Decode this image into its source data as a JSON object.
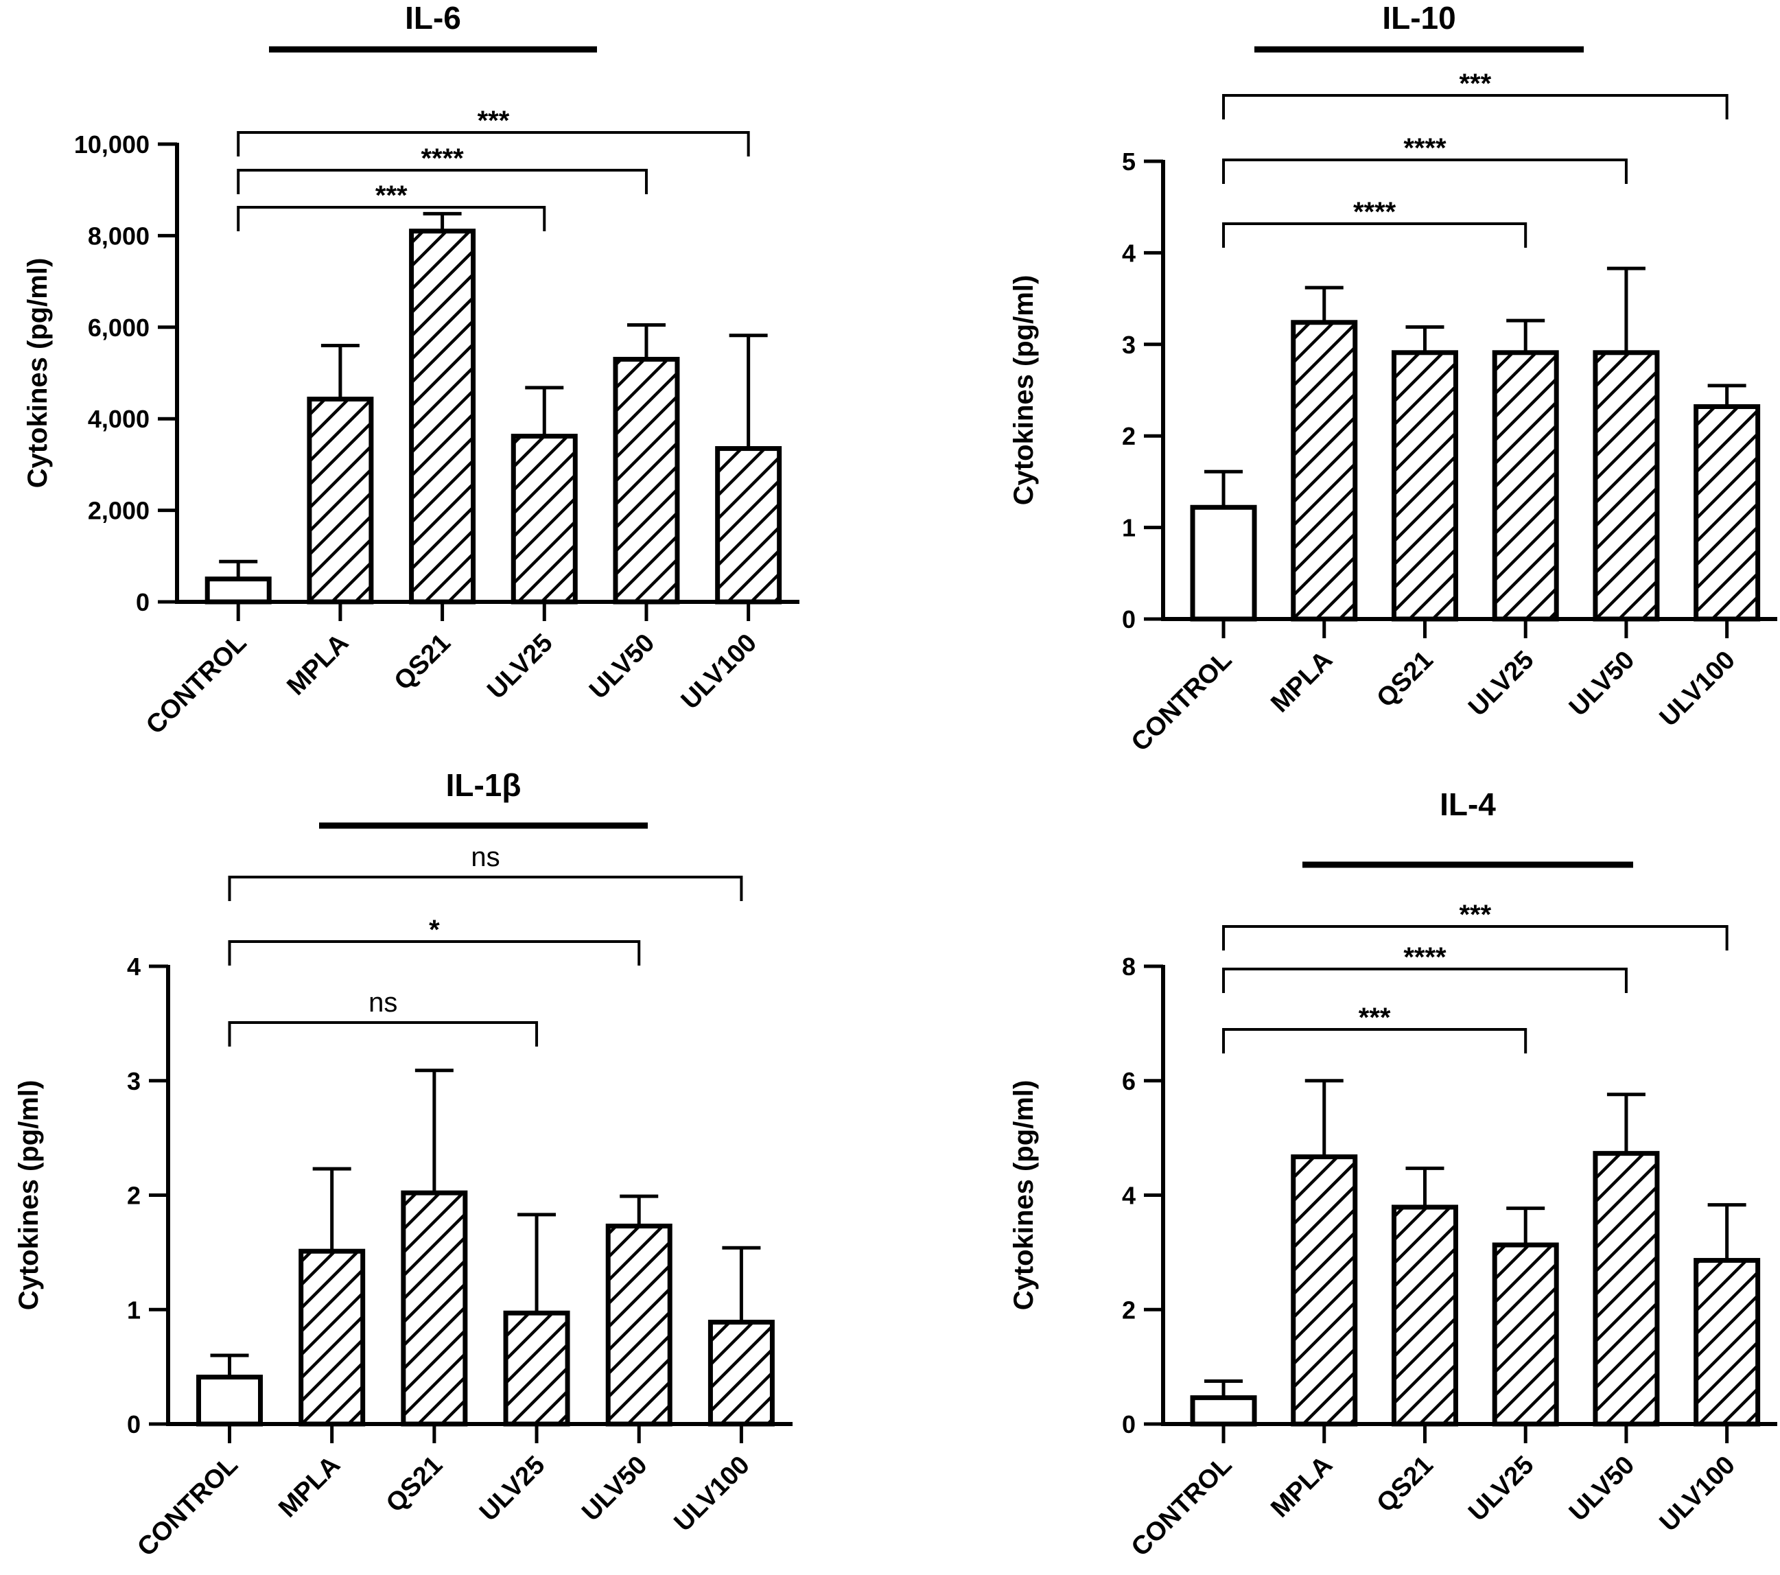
{
  "chart_data": [
    {
      "type": "bar",
      "title": "IL-6",
      "ylabel": "Cytokines (pg/ml)",
      "xlabel": "",
      "categories": [
        "CONTROL",
        "MPLA",
        "QS21",
        "ULV25",
        "ULV50",
        "ULV100"
      ],
      "values": [
        500,
        4430,
        8100,
        3620,
        5300,
        3350
      ],
      "errors": [
        380,
        1170,
        380,
        1060,
        750,
        2470
      ],
      "patterns": [
        "none",
        "hatch",
        "hatch",
        "hatch",
        "hatch",
        "hatch"
      ],
      "ylim": [
        0,
        10000
      ],
      "yticks": [
        0,
        2000,
        4000,
        6000,
        8000,
        10000
      ],
      "ytick_labels": [
        "0",
        "2,000",
        "4,000",
        "6,000",
        "8,000",
        "10,000"
      ],
      "comparisons": [
        {
          "from": "CONTROL",
          "to": "ULV25",
          "label": "***"
        },
        {
          "from": "CONTROL",
          "to": "ULV50",
          "label": "****"
        },
        {
          "from": "CONTROL",
          "to": "ULV100",
          "label": "***"
        }
      ]
    },
    {
      "type": "bar",
      "title": "IL-10",
      "ylabel": "Cytokines (pg/ml)",
      "xlabel": "",
      "categories": [
        "CONTROL",
        "MPLA",
        "QS21",
        "ULV25",
        "ULV50",
        "ULV100"
      ],
      "values": [
        1.22,
        3.24,
        2.91,
        2.91,
        2.91,
        2.32
      ],
      "errors": [
        0.39,
        0.38,
        0.28,
        0.35,
        0.92,
        0.23
      ],
      "patterns": [
        "none",
        "hatch",
        "hatch",
        "hatch",
        "hatch",
        "hatch"
      ],
      "ylim": [
        0,
        5
      ],
      "yticks": [
        0,
        1,
        2,
        3,
        4,
        5
      ],
      "ytick_labels": [
        "0",
        "1",
        "2",
        "3",
        "4",
        "5"
      ],
      "comparisons": [
        {
          "from": "CONTROL",
          "to": "ULV25",
          "label": "****"
        },
        {
          "from": "CONTROL",
          "to": "ULV50",
          "label": "****"
        },
        {
          "from": "CONTROL",
          "to": "ULV100",
          "label": "***"
        }
      ]
    },
    {
      "type": "bar",
      "title": "IL-1β",
      "ylabel": "Cytokines (pg/ml)",
      "xlabel": "",
      "categories": [
        "CONTROL",
        "MPLA",
        "QS21",
        "ULV25",
        "ULV50",
        "ULV100"
      ],
      "values": [
        0.41,
        1.51,
        2.02,
        0.97,
        1.73,
        0.89
      ],
      "errors": [
        0.19,
        0.72,
        1.07,
        0.86,
        0.26,
        0.65
      ],
      "patterns": [
        "none",
        "hatch",
        "hatch",
        "hatch",
        "hatch",
        "hatch"
      ],
      "ylim": [
        0,
        4
      ],
      "yticks": [
        0,
        1,
        2,
        3,
        4
      ],
      "ytick_labels": [
        "0",
        "1",
        "2",
        "3",
        "4"
      ],
      "comparisons": [
        {
          "from": "CONTROL",
          "to": "ULV25",
          "label": "ns"
        },
        {
          "from": "CONTROL",
          "to": "ULV50",
          "label": "*"
        },
        {
          "from": "CONTROL",
          "to": "ULV100",
          "label": "ns"
        }
      ]
    },
    {
      "type": "bar",
      "title": "IL-4",
      "ylabel": "Cytokines (pg/ml)",
      "xlabel": "",
      "categories": [
        "CONTROL",
        "MPLA",
        "QS21",
        "ULV25",
        "ULV50",
        "ULV100"
      ],
      "values": [
        0.46,
        4.67,
        3.79,
        3.13,
        4.73,
        2.86
      ],
      "errors": [
        0.29,
        1.33,
        0.68,
        0.64,
        1.03,
        0.97
      ],
      "patterns": [
        "none",
        "hatch",
        "hatch",
        "hatch",
        "hatch",
        "hatch"
      ],
      "ylim": [
        0,
        8
      ],
      "yticks": [
        0,
        2,
        4,
        6,
        8
      ],
      "ytick_labels": [
        "0",
        "2",
        "4",
        "6",
        "8"
      ],
      "comparisons": [
        {
          "from": "CONTROL",
          "to": "ULV25",
          "label": "***"
        },
        {
          "from": "CONTROL",
          "to": "ULV50",
          "label": "****"
        },
        {
          "from": "CONTROL",
          "to": "ULV100",
          "label": "***"
        }
      ]
    }
  ]
}
